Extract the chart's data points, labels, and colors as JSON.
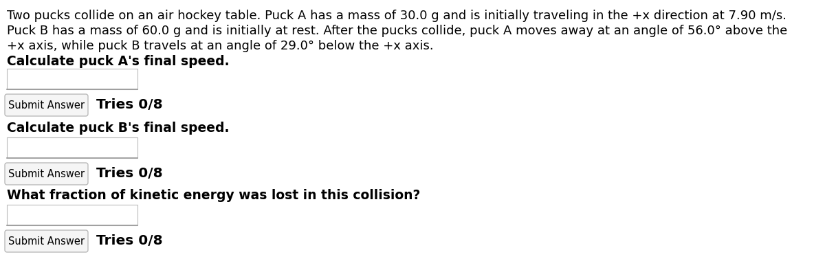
{
  "background_color": "#ffffff",
  "text_color": "#000000",
  "font_family": "DejaVu Sans",
  "line1": "Two pucks collide on an air hockey table. Puck A has a mass of 30.0 g and is initially traveling in the +x direction at 7.90 m/s.",
  "line2": "Puck B has a mass of 60.0 g and is initially at rest. After the pucks collide, puck A moves away at an angle of 56.0° above the",
  "line3": "+x axis, while puck B travels at an angle of 29.0° below the +x axis.",
  "question1": "Calculate puck A's final speed.",
  "question2": "Calculate puck B's final speed.",
  "question3": "What fraction of kinetic energy was lost in this collision?",
  "submit_label": "Submit Answer",
  "tries_label": "Tries 0/8",
  "font_size_paragraph": 13.0,
  "font_size_question": 13.5,
  "font_size_button": 10.5,
  "font_size_tries": 14.5,
  "fig_width": 12.0,
  "fig_height": 3.77,
  "dpi": 100
}
